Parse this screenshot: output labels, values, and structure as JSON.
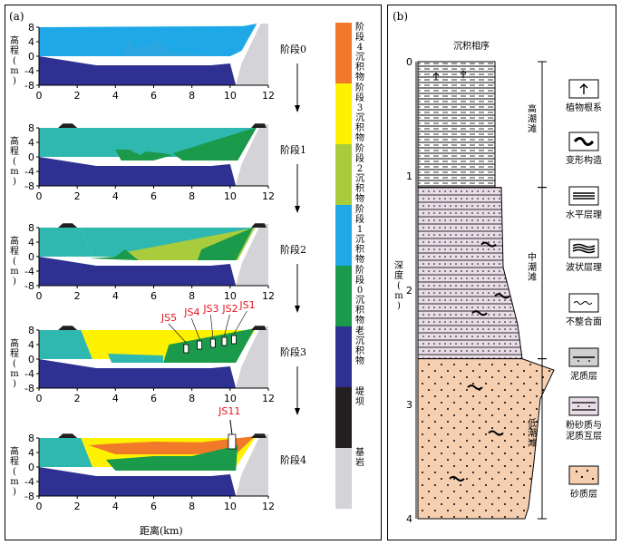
{
  "panel_a": {
    "label": "(a)",
    "y_axis_label": "高程(m)",
    "x_axis_label": "距离(km)",
    "x_ticks": [
      "0",
      "2",
      "4",
      "6",
      "8",
      "10",
      "12"
    ],
    "y_ticks": [
      "8",
      "4",
      "0",
      "-4",
      "-8"
    ],
    "stages": [
      {
        "name": "阶段0"
      },
      {
        "name": "阶段1"
      },
      {
        "name": "阶段2"
      },
      {
        "name": "阶段3"
      },
      {
        "name": "阶段4"
      }
    ],
    "legend": [
      {
        "label": "阶段4沉积物",
        "color": "#f07a2a"
      },
      {
        "label": "阶段3沉积物",
        "color": "#fff200"
      },
      {
        "label": "阶段2沉积物",
        "color": "#a8cc3c"
      },
      {
        "label": "阶段1沉积物",
        "color": "#1ea8e8"
      },
      {
        "label": "阶段0沉积物",
        "color": "#1a9a4a"
      },
      {
        "label": "老沉积物",
        "color": "#2e3192"
      },
      {
        "label": "堤坝",
        "color": "#231f20"
      },
      {
        "label": "基岩",
        "color": "#d3d3d8"
      }
    ],
    "cores_stage3": [
      "JS5",
      "JS4",
      "JS3",
      "JS2",
      "JS1"
    ],
    "core_stage4": "JS11",
    "colors": {
      "water": "#1ea8e8",
      "teal": "#2fb8b0",
      "green": "#1a9a4a",
      "lime": "#a8cc3c",
      "yellow": "#fff200",
      "orange": "#f07a2a",
      "navy": "#2e3192",
      "rock": "#d3d3d8",
      "dam": "#231f20"
    }
  },
  "panel_b": {
    "label": "(b)",
    "title": "沉积相序",
    "depth_label": "深度(m)",
    "depth_ticks": [
      "0",
      "1",
      "2",
      "3",
      "4"
    ],
    "zones": [
      "高潮滩",
      "中潮滩",
      "低潮滩"
    ],
    "legend": [
      {
        "label": "植物根系",
        "icon": "plant-root-icon"
      },
      {
        "label": "变形构造",
        "icon": "deformation-icon"
      },
      {
        "label": "水平层理",
        "icon": "horizontal-bedding-icon"
      },
      {
        "label": "波状层理",
        "icon": "wavy-bedding-icon"
      },
      {
        "label": "不整合面",
        "icon": "unconformity-icon"
      },
      {
        "label": "泥质层",
        "icon": "mud-layer-icon"
      },
      {
        "label": "粉砂质与泥质互层",
        "line1": "粉砂质与",
        "line2": "泥质互层",
        "icon": "interbedded-icon"
      },
      {
        "label": "砂质层",
        "icon": "sand-layer-icon"
      }
    ],
    "colors": {
      "sand": "#f6cfb1",
      "mid": "#e9dce6",
      "line": "#000000"
    }
  }
}
